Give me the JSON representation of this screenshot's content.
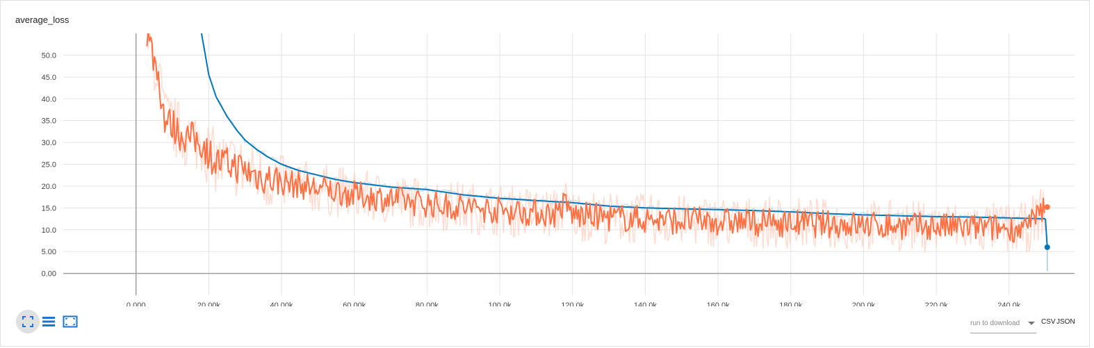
{
  "chart_data": {
    "type": "line",
    "title": "average_loss",
    "xlim": [
      -20000,
      258000
    ],
    "ylim": [
      -5,
      55
    ],
    "x_ticks": [
      0,
      20000,
      40000,
      60000,
      80000,
      100000,
      120000,
      140000,
      160000,
      180000,
      200000,
      220000,
      240000
    ],
    "x_tick_labels": [
      "0.000",
      "20.00k",
      "40.00k",
      "60.00k",
      "80.00k",
      "100.0k",
      "120.0k",
      "140.0k",
      "160.0k",
      "180.0k",
      "200.0k",
      "220.0k",
      "240.0k"
    ],
    "y_ticks": [
      0,
      5,
      10,
      15,
      20,
      25,
      30,
      35,
      40,
      45,
      50
    ],
    "y_tick_labels": [
      "0.00",
      "5.00",
      "10.0",
      "15.0",
      "20.0",
      "25.0",
      "30.0",
      "35.0",
      "40.0",
      "45.0",
      "50.0"
    ],
    "grid": true,
    "series": [
      {
        "color": "#0077bb",
        "faint_color": "#a6cce3",
        "x": [
          18000,
          20000,
          22000,
          25000,
          28000,
          30000,
          33000,
          36000,
          40000,
          45000,
          50000,
          55000,
          60000,
          70000,
          80000,
          90000,
          100000,
          110000,
          120000,
          124000,
          130000,
          140000,
          150000,
          160000,
          170000,
          180000,
          190000,
          200000,
          210000,
          220000,
          230000,
          240000,
          250000
        ],
        "y": [
          55,
          45.5,
          40.5,
          36,
          32.5,
          30.5,
          28.5,
          26.8,
          25,
          23.5,
          22.5,
          21.5,
          20.8,
          19.8,
          19.2,
          18,
          17.2,
          16.7,
          16.2,
          15.9,
          15.4,
          15,
          14.8,
          14.6,
          14.4,
          14.1,
          13.7,
          13.4,
          13.2,
          13,
          12.9,
          12.7,
          12.5
        ],
        "final_point": [
          250500,
          6
        ]
      },
      {
        "color": "#ff7043",
        "faint_color": "#ffccbc",
        "x": [
          3000,
          4000,
          5000,
          6000,
          8000,
          10000,
          12000,
          15000,
          18000,
          20000,
          22000,
          25000,
          28000,
          30000,
          33000,
          36000,
          40000,
          45000,
          50000,
          55000,
          60000,
          65000,
          70000,
          75000,
          80000,
          85000,
          90000,
          95000,
          100000,
          105000,
          110000,
          115000,
          118000,
          120000,
          125000,
          130000,
          135000,
          140000,
          145000,
          150000,
          155000,
          160000,
          165000,
          170000,
          175000,
          180000,
          185000,
          190000,
          195000,
          200000,
          205000,
          210000,
          215000,
          220000,
          225000,
          230000,
          235000,
          240000,
          245000,
          250000
        ],
        "y": [
          55,
          52,
          49,
          46,
          35,
          34,
          32,
          31,
          30,
          27.5,
          25.5,
          25,
          24.5,
          23.5,
          22.5,
          21.8,
          21,
          20.2,
          19.5,
          18.8,
          18,
          17.5,
          17,
          16.5,
          16,
          15.5,
          15.2,
          14.8,
          14.5,
          14.2,
          13.9,
          13.6,
          16,
          13.4,
          13.1,
          12.8,
          12.6,
          12.4,
          12.2,
          12.1,
          12,
          11.9,
          11.8,
          11.7,
          11.6,
          11.5,
          11.4,
          11.3,
          11.2,
          11.1,
          11,
          10.9,
          10.8,
          10.7,
          10.6,
          10.5,
          10.4,
          10.3,
          10.4,
          15.2
        ],
        "final_point": [
          250500,
          15.2
        ]
      }
    ]
  },
  "toolbar": {
    "download_placeholder": "run to download",
    "csv_label": "CSV",
    "json_label": "JSON"
  }
}
